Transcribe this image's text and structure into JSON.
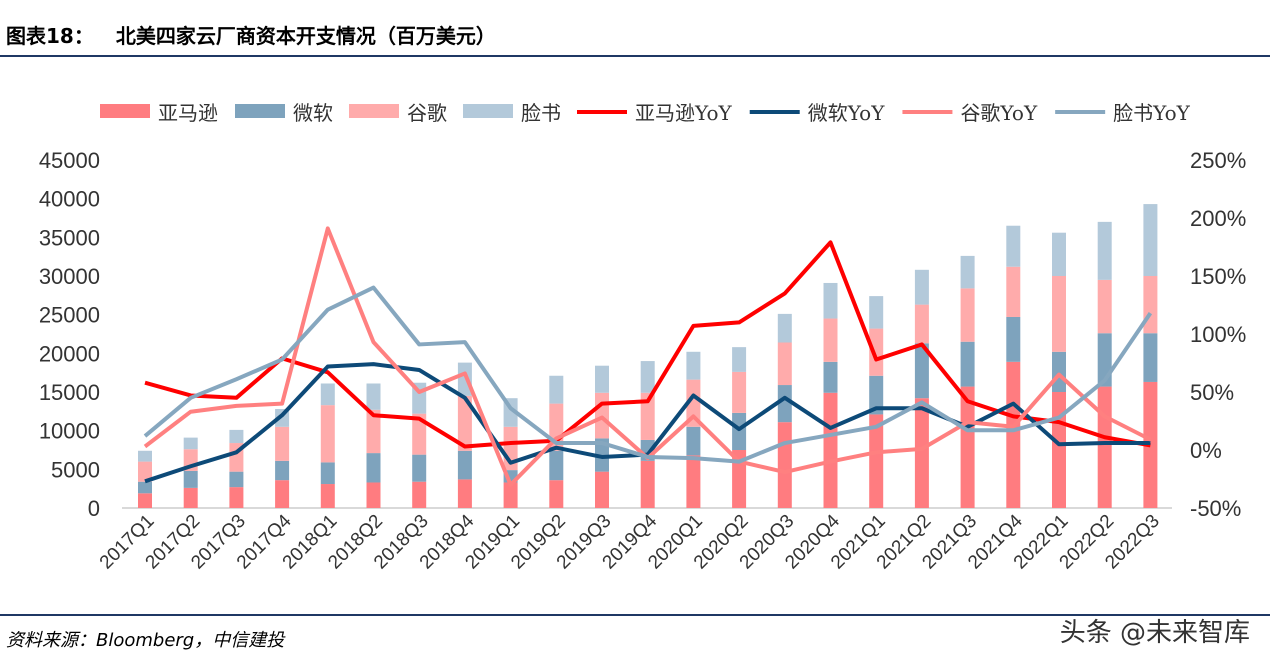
{
  "header": {
    "figure_label": "图表18：",
    "title": "北美四家云厂商资本开支情况（百万美元）"
  },
  "footer": {
    "source": "资料来源：Bloomberg，中信建投",
    "watermark": "头条 @未来智库"
  },
  "chart_data": {
    "type": "bar+line",
    "title": "北美四家云厂商资本开支情况（百万美元）",
    "categories": [
      "2017Q1",
      "2017Q2",
      "2017Q3",
      "2017Q4",
      "2018Q1",
      "2018Q2",
      "2018Q3",
      "2018Q4",
      "2019Q1",
      "2019Q2",
      "2019Q3",
      "2019Q4",
      "2020Q1",
      "2020Q2",
      "2020Q3",
      "2020Q4",
      "2021Q1",
      "2021Q2",
      "2021Q3",
      "2021Q4",
      "2022Q1",
      "2022Q2",
      "2022Q3"
    ],
    "y_left": {
      "min": 0,
      "max": 45000,
      "ticks": [
        "0",
        "5000",
        "10000",
        "15000",
        "20000",
        "25000",
        "30000",
        "35000",
        "40000",
        "45000"
      ]
    },
    "y_right": {
      "min": -50,
      "max": 250,
      "ticks": [
        "-50%",
        "0%",
        "50%",
        "100%",
        "150%",
        "200%",
        "250%"
      ]
    },
    "legend_position": "top",
    "bar_series": [
      {
        "name": "亚马逊",
        "color": "#ff7c80",
        "values": [
          1900,
          2600,
          2700,
          3600,
          3100,
          3300,
          3400,
          3700,
          3300,
          3600,
          4700,
          6100,
          6800,
          7500,
          11100,
          14900,
          12100,
          14200,
          15700,
          18900,
          15000,
          15700,
          16300
        ]
      },
      {
        "name": "微软",
        "color": "#7ea3bd",
        "values": [
          1500,
          2200,
          2000,
          2500,
          2800,
          3800,
          3500,
          3700,
          1600,
          3800,
          4300,
          2700,
          3700,
          4800,
          4800,
          4000,
          5000,
          7100,
          5800,
          5800,
          5200,
          6900,
          6300
        ]
      },
      {
        "name": "谷歌",
        "color": "#ffabab",
        "values": [
          2600,
          2800,
          3700,
          4400,
          7400,
          5600,
          5300,
          7100,
          5600,
          6100,
          5900,
          6100,
          6100,
          5300,
          5500,
          5600,
          6100,
          5000,
          6900,
          6500,
          9800,
          6900,
          7400
        ]
      },
      {
        "name": "脸书",
        "color": "#b3c9da",
        "values": [
          1400,
          1500,
          1700,
          2300,
          2800,
          3400,
          4000,
          4300,
          3700,
          3600,
          3500,
          4100,
          3600,
          3200,
          3700,
          4600,
          4200,
          4500,
          4200,
          5300,
          5600,
          7500,
          9300
        ]
      }
    ],
    "line_series": [
      {
        "name": "亚马逊YoY",
        "color": "#ff0000",
        "values": [
          58,
          47,
          45,
          79,
          67,
          30,
          27,
          3,
          6,
          8,
          40,
          42,
          107,
          110,
          135,
          179,
          78,
          91,
          42,
          29,
          24,
          11,
          4
        ]
      },
      {
        "name": "微软YoY",
        "color": "#0d4a78",
        "values": [
          -27,
          -14,
          -2,
          30,
          72,
          74,
          69,
          45,
          -11,
          2,
          -6,
          -4,
          47,
          18,
          45,
          19,
          36,
          36,
          20,
          40,
          5,
          6,
          6
        ]
      },
      {
        "name": "谷歌YoY",
        "color": "#ff8080",
        "values": [
          3,
          33,
          38,
          40,
          191,
          93,
          50,
          66,
          -30,
          10,
          28,
          -7,
          29,
          -10,
          -19,
          -10,
          -2,
          1,
          24,
          20,
          65,
          29,
          9
        ]
      },
      {
        "name": "脸书YoY",
        "color": "#86a7bf",
        "values": [
          12,
          45,
          61,
          78,
          121,
          140,
          91,
          93,
          36,
          6,
          6,
          -6,
          -7,
          -10,
          6,
          13,
          20,
          41,
          17,
          17,
          28,
          60,
          118
        ]
      }
    ]
  }
}
